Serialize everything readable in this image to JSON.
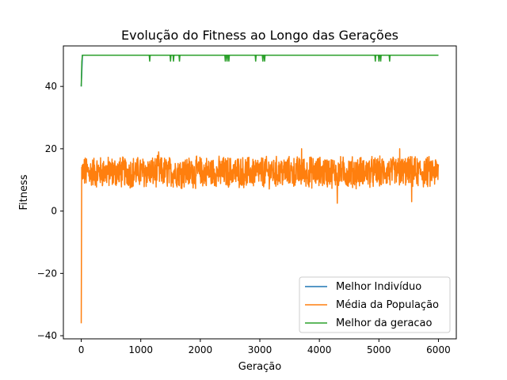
{
  "chart_data": {
    "type": "line",
    "title": "Evolução do Fitness ao Longo das Gerações",
    "xlabel": "Geração",
    "ylabel": "Fitness",
    "xlim": [
      -300,
      6300
    ],
    "ylim": [
      -41,
      53
    ],
    "x_ticks": [
      0,
      1000,
      2000,
      3000,
      4000,
      5000,
      6000
    ],
    "y_ticks": [
      -40,
      -20,
      0,
      20,
      40
    ],
    "grid": false,
    "legend_position": "lower right",
    "series": [
      {
        "name": "Melhor Indivíduo",
        "color": "#1f77b4",
        "x": [
          0,
          20,
          6000
        ],
        "values": [
          40,
          50,
          50
        ]
      },
      {
        "name": "Média da População",
        "color": "#ff7f0e",
        "x_range": [
          0,
          6000
        ],
        "start_values": [
          -36,
          14
        ],
        "band": [
          8,
          17
        ],
        "outliers": [
          [
            3700,
            20
          ],
          [
            4300,
            2.5
          ],
          [
            5550,
            3
          ],
          [
            5350,
            20
          ],
          [
            1300,
            19
          ]
        ]
      },
      {
        "name": "Melhor da geracao",
        "color": "#2ca02c",
        "x": [
          0,
          10,
          20,
          6000
        ],
        "values": [
          40,
          48,
          50,
          50
        ],
        "dips": [
          1150,
          1500,
          1550,
          1650,
          2420,
          2450,
          2480,
          2930,
          3050,
          3080,
          4940,
          5000,
          5030,
          5180
        ]
      }
    ]
  }
}
